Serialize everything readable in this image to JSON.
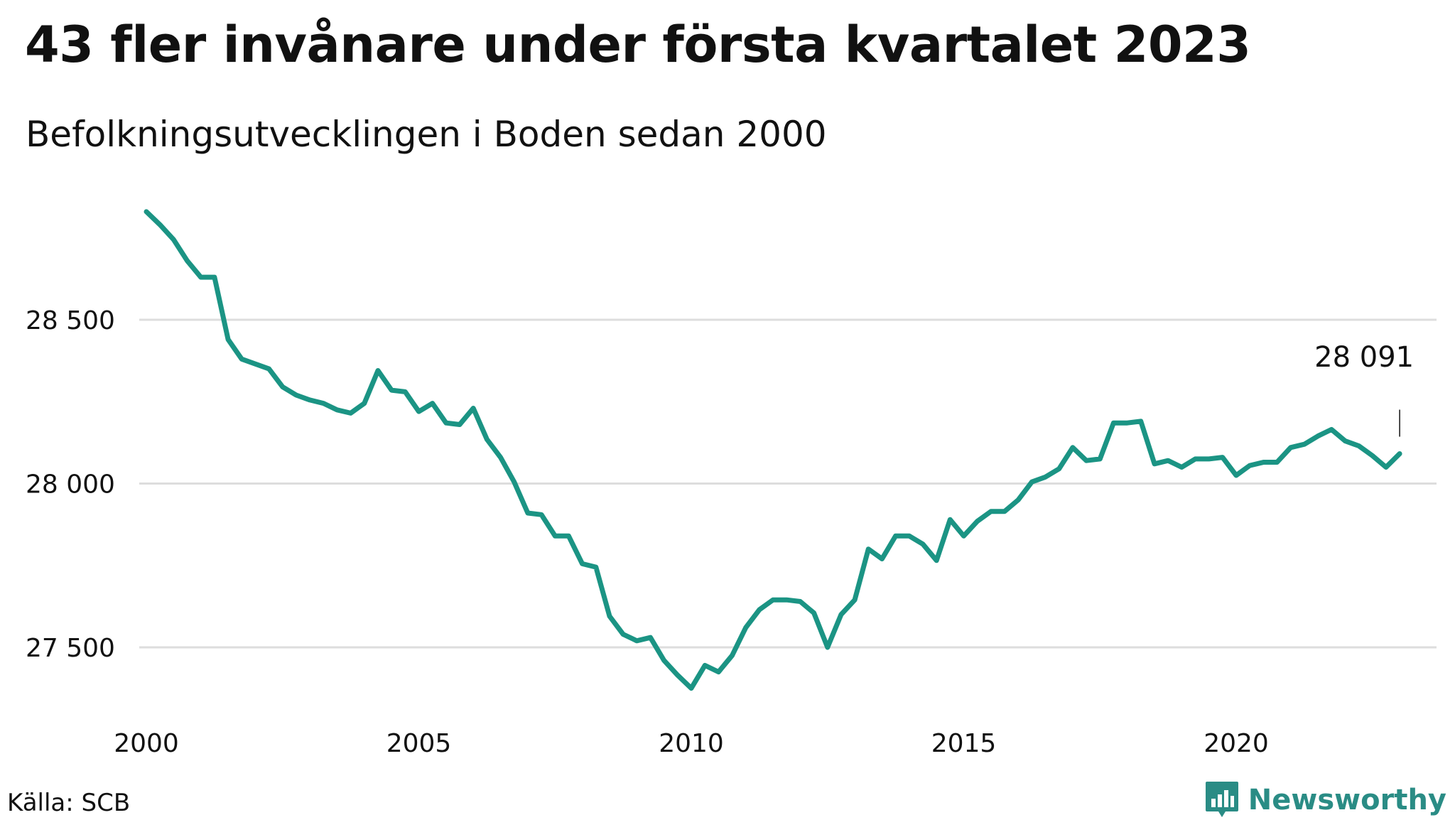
{
  "title": "43 fler invånare under första kvartalet 2023",
  "subtitle": "Befolkningsutvecklingen i Boden sedan 2000",
  "source": "Källa: SCB",
  "brand": {
    "name": "Newsworthy",
    "color": "#2a8c85",
    "icon": "newsworthy-logo-icon"
  },
  "line_color": "#1b9484",
  "grid_color": "#dddddd",
  "chart_data": {
    "type": "line",
    "title": "43 fler invånare under första kvartalet 2023",
    "subtitle": "Befolkningsutvecklingen i Boden sedan 2000",
    "xlabel": "",
    "ylabel": "",
    "xlim": [
      2000,
      2023.5
    ],
    "ylim": [
      27350,
      28850
    ],
    "x_ticks": [
      2000,
      2005,
      2010,
      2015,
      2020
    ],
    "x_tick_labels": [
      "2000",
      "2005",
      "2010",
      "2015",
      "2020"
    ],
    "y_ticks": [
      27500,
      28000,
      28500
    ],
    "y_tick_labels": [
      "27 500",
      "28 000",
      "28 500"
    ],
    "grid": "horizontal",
    "annotation": {
      "x": 2023,
      "y": 28091,
      "label": "28 091"
    },
    "series": [
      {
        "x": [
          2000,
          2000.25,
          2000.5,
          2000.75,
          2001,
          2001.25,
          2001.5,
          2001.75,
          2002,
          2002.25,
          2002.5,
          2002.75,
          2003,
          2003.25,
          2003.5,
          2003.75,
          2004,
          2004.25,
          2004.5,
          2004.75,
          2005,
          2005.25,
          2005.5,
          2005.75,
          2006,
          2006.25,
          2006.5,
          2006.75,
          2007,
          2007.25,
          2007.5,
          2007.75,
          2008,
          2008.25,
          2008.5,
          2008.75,
          2009,
          2009.25,
          2009.5,
          2009.75,
          2010,
          2010.25,
          2010.5,
          2010.75,
          2011,
          2011.25,
          2011.5,
          2011.75,
          2012,
          2012.25,
          2012.5,
          2012.75,
          2013,
          2013.25,
          2013.5,
          2013.75,
          2014,
          2014.25,
          2014.5,
          2014.75,
          2015,
          2015.25,
          2015.5,
          2015.75,
          2016,
          2016.25,
          2016.5,
          2016.75,
          2017,
          2017.25,
          2017.5,
          2017.75,
          2018,
          2018.25,
          2018.5,
          2018.75,
          2019,
          2019.25,
          2019.5,
          2019.75,
          2020,
          2020.25,
          2020.5,
          2020.75,
          2021,
          2021.25,
          2021.5,
          2021.75,
          2022,
          2022.25,
          2022.5,
          2022.75,
          2023
        ],
        "values": [
          28830,
          28790,
          28745,
          28680,
          28630,
          28630,
          28440,
          28380,
          28365,
          28350,
          28295,
          28270,
          28255,
          28245,
          28225,
          28215,
          28245,
          28345,
          28285,
          28280,
          28220,
          28245,
          28185,
          28180,
          28230,
          28135,
          28080,
          28005,
          27910,
          27905,
          27840,
          27840,
          27755,
          27745,
          27595,
          27540,
          27520,
          27530,
          27460,
          27415,
          27375,
          27445,
          27425,
          27475,
          27560,
          27615,
          27645,
          27645,
          27640,
          27605,
          27500,
          27600,
          27645,
          27800,
          27770,
          27840,
          27840,
          27815,
          27765,
          27890,
          27840,
          27885,
          27915,
          27915,
          27950,
          28005,
          28020,
          28045,
          28110,
          28070,
          28075,
          28185,
          28185,
          28190,
          28060,
          28070,
          28050,
          28075,
          28075,
          28080,
          28025,
          28055,
          28065,
          28065,
          28110,
          28120,
          28145,
          28165,
          28130,
          28115,
          28085,
          28050,
          28091
        ]
      }
    ]
  }
}
